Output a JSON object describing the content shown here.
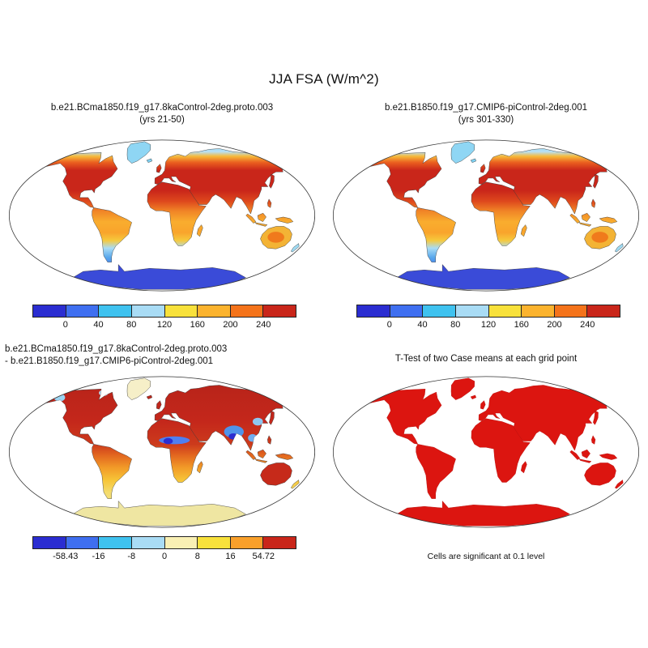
{
  "title": "JJA FSA (W/m^2)",
  "panels": {
    "top_left": {
      "title_line1": "b.e21.BCma1850.f19_g17.8kaControl-2deg.proto.003",
      "title_line2": "(yrs 21-50)"
    },
    "top_right": {
      "title_line1": "b.e21.B1850.f19_g17.CMIP6-piControl-2deg.001",
      "title_line2": "(yrs 301-330)"
    },
    "bottom_left": {
      "title_line1": "b.e21.BCma1850.f19_g17.8kaControl-2deg.proto.003",
      "title_line2": "- b.e21.B1850.f19_g17.CMIP6-piControl-2deg.001"
    },
    "bottom_right": {
      "title": "T-Test of two Case means at each grid point",
      "caption": "Cells are significant at 0.1 level"
    }
  },
  "colorbars": {
    "absolute": {
      "tick_labels": [
        "0",
        "40",
        "80",
        "120",
        "160",
        "200",
        "240"
      ],
      "colors": [
        "#2b2dd1",
        "#3f6ff0",
        "#3fc2ef",
        "#a9dcf5",
        "#f8e13b",
        "#fbb32e",
        "#f4731a",
        "#c9261a"
      ]
    },
    "difference": {
      "tick_labels": [
        "-58.43",
        "-16",
        "-8",
        "0",
        "8",
        "16",
        "54.72"
      ],
      "colors": [
        "#2b2dd1",
        "#3f6ff0",
        "#3fc2ef",
        "#a9dcf5",
        "#f9f0b4",
        "#f8e13b",
        "#f9a02b",
        "#c9261a"
      ]
    }
  },
  "chart_data": [
    {
      "type": "heatmap",
      "panel": "top_left",
      "map_projection": "robinson",
      "title": "b.e21.BCma1850.f19_g17.8kaControl-2deg.proto.003",
      "subtitle": "(yrs 21-50)",
      "variable": "JJA FSA",
      "units": "W/m^2",
      "colorbar_levels": [
        0,
        40,
        80,
        120,
        160,
        200,
        240
      ],
      "legend_position": "below",
      "ocean": "white (masked)"
    },
    {
      "type": "heatmap",
      "panel": "top_right",
      "map_projection": "robinson",
      "title": "b.e21.B1850.f19_g17.CMIP6-piControl-2deg.001",
      "subtitle": "(yrs 301-330)",
      "variable": "JJA FSA",
      "units": "W/m^2",
      "colorbar_levels": [
        0,
        40,
        80,
        120,
        160,
        200,
        240
      ],
      "legend_position": "below",
      "ocean": "white (masked)"
    },
    {
      "type": "heatmap",
      "panel": "bottom_left",
      "map_projection": "robinson",
      "title": "b.e21.BCma1850.f19_g17.8kaControl-2deg.proto.003 - b.e21.B1850.f19_g17.CMIP6-piControl-2deg.001",
      "variable": "JJA FSA difference",
      "units": "W/m^2",
      "min": -58.43,
      "max": 54.72,
      "colorbar_levels": [
        -58.43,
        -16,
        -8,
        0,
        8,
        16,
        54.72
      ],
      "legend_position": "below",
      "ocean": "white (masked)"
    },
    {
      "type": "heatmap",
      "panel": "bottom_right",
      "map_projection": "robinson",
      "title": "T-Test of two Case means at each grid point",
      "annotation": "Cells are significant at 0.1 level",
      "significance_level": 0.1,
      "significant_color": "#dc1510",
      "ocean": "white (masked)"
    }
  ]
}
